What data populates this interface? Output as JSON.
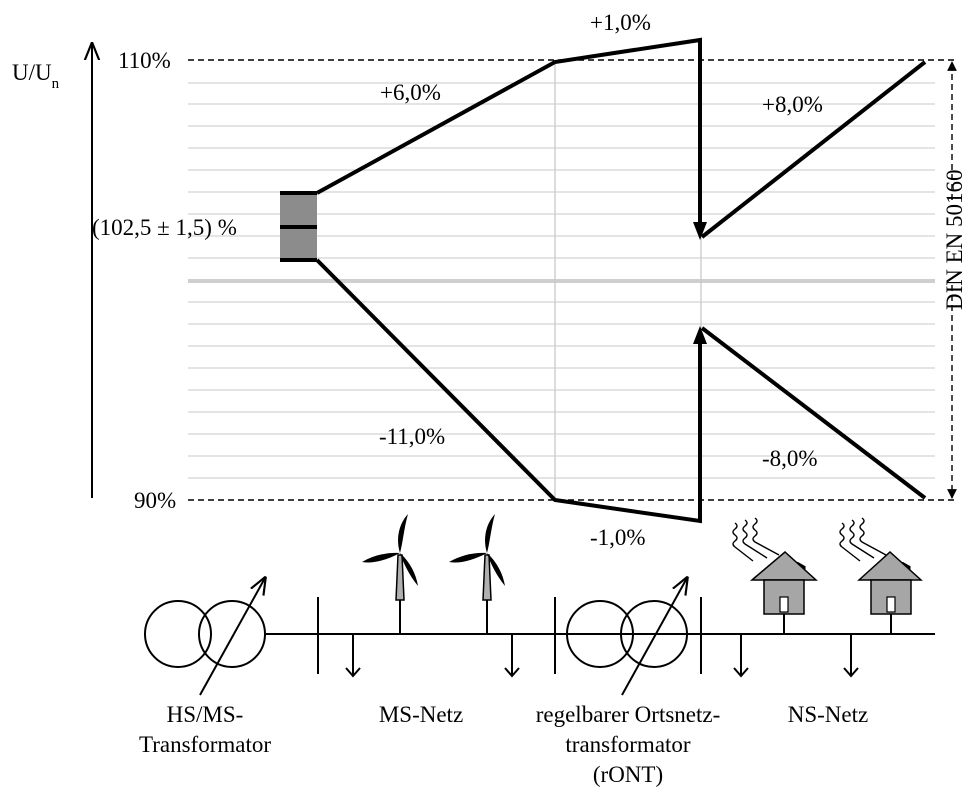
{
  "y_axis": {
    "label_main": "U/U",
    "label_sub": "n",
    "tick_upper": "110%",
    "tick_lower": "90%"
  },
  "regulation_band": "(102,5 ± 1,5) %",
  "voltage_changes": {
    "mv_upper": "+6,0%",
    "mv_lower": "-11,0%",
    "ront_upper": "+1,0%",
    "ront_lower": "-1,0%",
    "lv_upper": "+8,0%",
    "lv_lower": "-8,0%"
  },
  "standard": "DIN EN 50160",
  "components": {
    "hs_ms_line1": "HS/MS-",
    "hs_ms_line2": "Transformator",
    "ms_netz": "MS-Netz",
    "ront_line1": "regelbarer Ortsnetz-",
    "ront_line2": "transformator",
    "ront_line3": "(rONT)",
    "ns_netz": "NS-Netz"
  },
  "colors": {
    "line": "#000000",
    "grid": "#d4d4d4",
    "band_fill": "#8c8c8c",
    "house_fill": "#a6a6a6",
    "turbine_tower": "#b0b0b0"
  },
  "icons": [
    "transformer-icon",
    "wind-turbine-icon",
    "house-icon",
    "solar-radiation-icon",
    "load-arrow-icon"
  ]
}
